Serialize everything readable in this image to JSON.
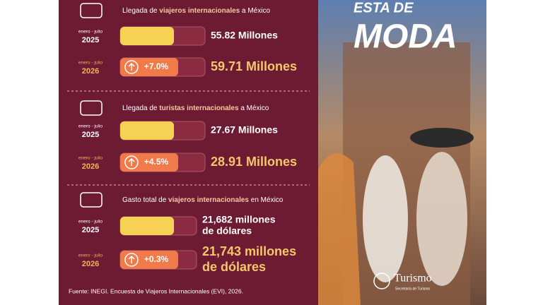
{
  "sections": [
    {
      "title": [
        "Llegada de ",
        "viajeros internacionales",
        " a México"
      ],
      "rows": [
        {
          "period": "enero - julio",
          "year": "2025",
          "value": [
            "55.82 Millones"
          ]
        },
        {
          "period": "enero - julio",
          "year": "2026",
          "change": "+7.0%",
          "value": [
            "59.71 Millones"
          ]
        }
      ]
    },
    {
      "title": [
        "Llegada de ",
        "turistas internacionales",
        " a México"
      ],
      "rows": [
        {
          "period": "enero - julio",
          "year": "2025",
          "value": [
            "27.67 Millones"
          ]
        },
        {
          "period": "enero - julio",
          "year": "2026",
          "change": "+4.5%",
          "value": [
            "28.91 Millones"
          ]
        }
      ]
    },
    {
      "title": [
        "Gasto total de ",
        "viajeros internacionales",
        " en México"
      ],
      "rows": [
        {
          "period": "enero - julio",
          "year": "2025",
          "value": [
            "21,682 millones",
            "de dólares"
          ]
        },
        {
          "period": "enero - julio",
          "year": "2026",
          "change": "+0.3%",
          "value": [
            "21,743 millones",
            "de dólares"
          ]
        }
      ]
    }
  ],
  "source": "Fuente: INEGI. Encuesta de Viajeros Internacionales (EVI), 2026.",
  "photo": {
    "headline": [
      "ESTA DE",
      "MODA"
    ],
    "logo": "Turismo",
    "logo_sub": "Secretaría de Turismo"
  }
}
